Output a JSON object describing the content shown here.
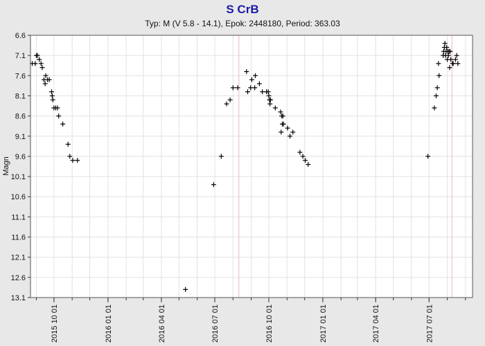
{
  "chart_data": {
    "type": "scatter",
    "title": "S CrB",
    "subtitle": "Typ: M (V 5.8 - 14.1), Epok: 2448180, Period: 363.03",
    "ylabel": "Magn",
    "xlabel": "",
    "y_inverted": true,
    "ylim": [
      6.6,
      13.1
    ],
    "xlim": [
      "2015-08-22",
      "2017-09-13"
    ],
    "y_ticks": [
      "6.6",
      "7.1",
      "7.6",
      "8.1",
      "8.6",
      "9.1",
      "9.6",
      "10.1",
      "10.6",
      "11.1",
      "11.6",
      "12.1",
      "12.6",
      "13.1"
    ],
    "x_ticks": [
      "2015 10 01",
      "2016 01 01",
      "2016 04 01",
      "2016 07 01",
      "2016 10 01",
      "2017 01 01",
      "2017 04 01",
      "2017 07 01"
    ],
    "markers": [
      "2016-08-11",
      "2017-08-09"
    ],
    "marker_color": "#f0b8b8",
    "point_color": "#000000",
    "grid": true,
    "points": [
      [
        "2015-08-25",
        7.3
      ],
      [
        "2015-08-30",
        7.3
      ],
      [
        "2015-09-01",
        7.1
      ],
      [
        "2015-09-03",
        7.1
      ],
      [
        "2015-09-06",
        7.2
      ],
      [
        "2015-09-09",
        7.3
      ],
      [
        "2015-09-11",
        7.4
      ],
      [
        "2015-09-14",
        7.7
      ],
      [
        "2015-09-16",
        7.8
      ],
      [
        "2015-09-17",
        7.6
      ],
      [
        "2015-09-20",
        7.7
      ],
      [
        "2015-09-23",
        7.7
      ],
      [
        "2015-09-27",
        8.0
      ],
      [
        "2015-09-28",
        8.1
      ],
      [
        "2015-09-29",
        8.2
      ],
      [
        "2015-10-01",
        8.4
      ],
      [
        "2015-10-04",
        8.4
      ],
      [
        "2015-10-07",
        8.4
      ],
      [
        "2015-10-09",
        8.6
      ],
      [
        "2015-10-16",
        8.8
      ],
      [
        "2015-10-25",
        9.3
      ],
      [
        "2015-10-28",
        9.6
      ],
      [
        "2015-11-02",
        9.7
      ],
      [
        "2015-11-10",
        9.7
      ],
      [
        "2016-05-12",
        12.9
      ],
      [
        "2016-06-29",
        10.3
      ],
      [
        "2016-07-12",
        9.6
      ],
      [
        "2016-07-21",
        8.3
      ],
      [
        "2016-07-27",
        8.2
      ],
      [
        "2016-08-01",
        7.9
      ],
      [
        "2016-08-09",
        7.9
      ],
      [
        "2016-08-24",
        7.5
      ],
      [
        "2016-08-26",
        8.0
      ],
      [
        "2016-08-31",
        7.9
      ],
      [
        "2016-09-02",
        7.7
      ],
      [
        "2016-09-07",
        7.9
      ],
      [
        "2016-09-08",
        7.6
      ],
      [
        "2016-09-15",
        7.8
      ],
      [
        "2016-09-20",
        8.0
      ],
      [
        "2016-09-27",
        8.0
      ],
      [
        "2016-09-30",
        8.0
      ],
      [
        "2016-10-01",
        8.1
      ],
      [
        "2016-10-02",
        8.2
      ],
      [
        "2016-10-03",
        8.3
      ],
      [
        "2016-10-04",
        8.2
      ],
      [
        "2016-10-12",
        8.4
      ],
      [
        "2016-10-21",
        8.5
      ],
      [
        "2016-10-23",
        8.6
      ],
      [
        "2016-10-24",
        8.8
      ],
      [
        "2016-10-25",
        8.6
      ],
      [
        "2016-10-26",
        8.8
      ],
      [
        "2016-10-22",
        9.0
      ],
      [
        "2016-11-02",
        8.9
      ],
      [
        "2016-11-06",
        9.1
      ],
      [
        "2016-11-11",
        9.0
      ],
      [
        "2016-11-23",
        9.5
      ],
      [
        "2016-11-28",
        9.6
      ],
      [
        "2016-12-02",
        9.7
      ],
      [
        "2016-12-07",
        9.8
      ],
      [
        "2017-06-29",
        9.6
      ],
      [
        "2017-07-10",
        8.4
      ],
      [
        "2017-07-13",
        8.1
      ],
      [
        "2017-07-15",
        7.9
      ],
      [
        "2017-07-18",
        7.6
      ],
      [
        "2017-07-17",
        7.3
      ],
      [
        "2017-07-25",
        7.1
      ],
      [
        "2017-07-26",
        7.0
      ],
      [
        "2017-07-27",
        6.9
      ],
      [
        "2017-07-28",
        6.8
      ],
      [
        "2017-07-29",
        7.1
      ],
      [
        "2017-07-30",
        7.0
      ],
      [
        "2017-07-31",
        6.9
      ],
      [
        "2017-08-01",
        7.2
      ],
      [
        "2017-08-02",
        7.0
      ],
      [
        "2017-08-03",
        7.1
      ],
      [
        "2017-08-04",
        7.0
      ],
      [
        "2017-08-06",
        7.0
      ],
      [
        "2017-08-07",
        7.2
      ],
      [
        "2017-08-05",
        7.4
      ],
      [
        "2017-08-10",
        7.3
      ],
      [
        "2017-08-11",
        7.3
      ],
      [
        "2017-08-15",
        7.2
      ],
      [
        "2017-08-17",
        7.1
      ],
      [
        "2017-08-19",
        7.3
      ]
    ]
  }
}
